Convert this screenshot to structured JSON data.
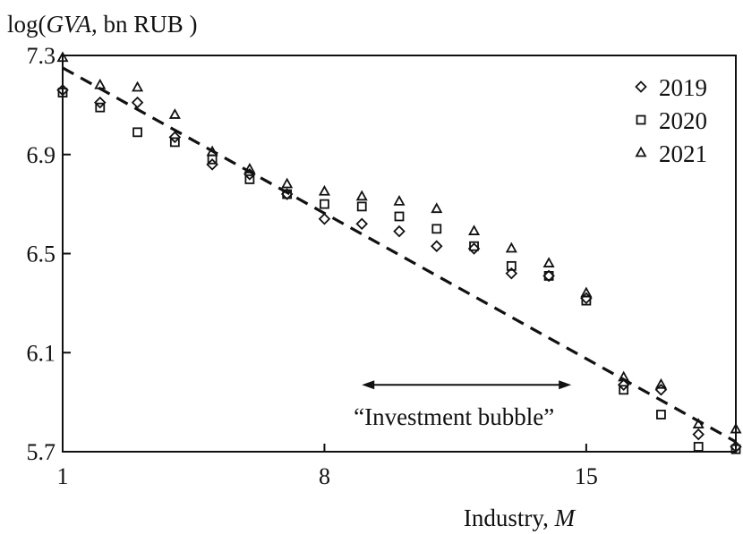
{
  "chart_data": {
    "type": "scatter",
    "ylabel": {
      "prefix": "log(",
      "var": "GVA",
      "suffix": ", bn RUB )"
    },
    "xlabel": {
      "text": "Industry, ",
      "var": "M"
    },
    "xlim": [
      1,
      19
    ],
    "ylim": [
      5.7,
      7.3
    ],
    "x_ticks": [
      1,
      8,
      15
    ],
    "y_ticks": [
      5.7,
      6.1,
      6.5,
      6.9,
      7.3
    ],
    "y_tick_labels": [
      "5.7",
      "6.1",
      "6.5",
      "6.9",
      "7.3"
    ],
    "grid": false,
    "legend_position": "top-right",
    "series": [
      {
        "name": "2019",
        "marker": "diamond",
        "x": [
          1,
          2,
          3,
          4,
          5,
          6,
          7,
          8,
          9,
          10,
          11,
          12,
          13,
          14,
          15,
          16,
          17,
          18,
          19
        ],
        "y": [
          7.16,
          7.11,
          7.11,
          6.97,
          6.86,
          6.82,
          6.74,
          6.64,
          6.62,
          6.59,
          6.53,
          6.52,
          6.42,
          6.41,
          6.32,
          5.97,
          5.95,
          5.77,
          5.72
        ]
      },
      {
        "name": "2020",
        "marker": "square",
        "x": [
          1,
          2,
          3,
          4,
          5,
          6,
          7,
          8,
          9,
          10,
          11,
          12,
          13,
          14,
          15,
          16,
          17,
          18,
          19
        ],
        "y": [
          7.15,
          7.09,
          6.99,
          6.95,
          6.88,
          6.8,
          6.74,
          6.7,
          6.69,
          6.65,
          6.6,
          6.53,
          6.45,
          6.41,
          6.31,
          5.95,
          5.85,
          5.72,
          5.71
        ]
      },
      {
        "name": "2021",
        "marker": "triangle",
        "x": [
          1,
          2,
          3,
          4,
          5,
          6,
          7,
          8,
          9,
          10,
          11,
          12,
          13,
          14,
          15,
          16,
          17,
          18,
          19
        ],
        "y": [
          7.29,
          7.18,
          7.17,
          7.06,
          6.91,
          6.84,
          6.78,
          6.75,
          6.73,
          6.71,
          6.68,
          6.59,
          6.52,
          6.46,
          6.34,
          6.0,
          5.97,
          5.81,
          5.79
        ]
      }
    ],
    "trend_line": {
      "x": [
        1,
        19
      ],
      "y": [
        7.25,
        5.74
      ]
    },
    "annotations": [
      {
        "text": "“Investment bubble”",
        "arrow_x": [
          9,
          14.6
        ],
        "arrow_y": 5.97
      }
    ]
  }
}
